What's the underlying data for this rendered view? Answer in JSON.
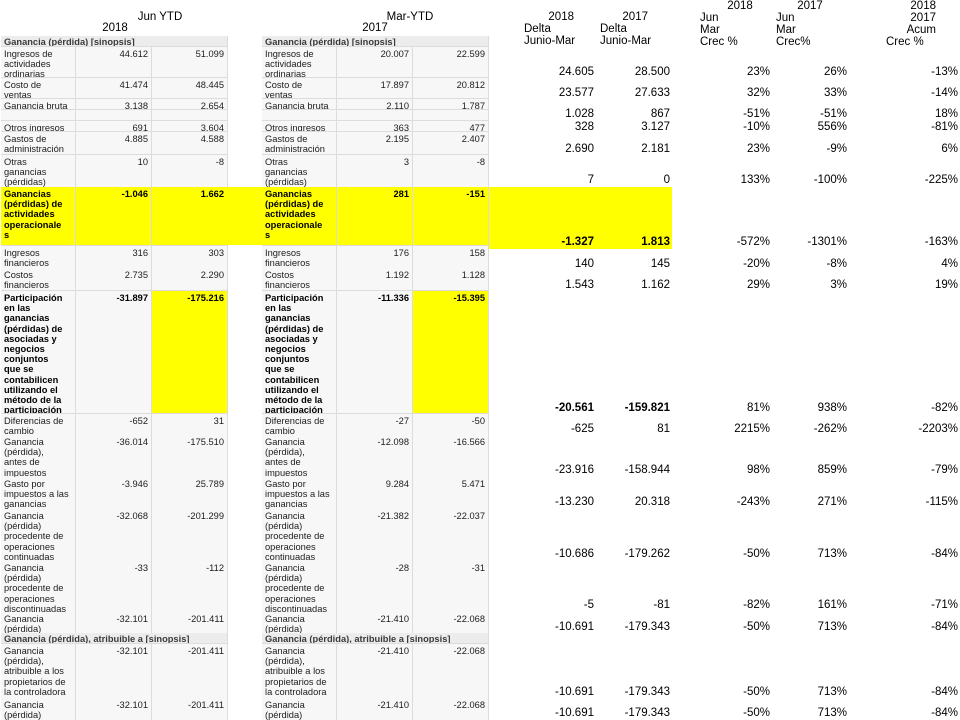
{
  "headers": {
    "jun_ytd": "Jun YTD",
    "y2018": "2018",
    "mar_ytd": "Mar-YTD",
    "y2017": "2017",
    "c_delta18_l1": "2018",
    "c_delta18_l2": "Delta",
    "c_delta18_l3": "Junio-Mar",
    "c_delta17_l1": "2017",
    "c_delta17_l2": "Delta",
    "c_delta17_l3": "Junio-Mar",
    "c_jun_l1": "2018",
    "c_jun_l2": "Jun",
    "c_jun_l3": "Mar",
    "c_jun_l4": "Crec %",
    "c_mar_l1": "2017",
    "c_mar_l2": "Jun",
    "c_mar_l3": "Mar",
    "c_mar_l4": "Crec%",
    "c_acum_l1": "2018",
    "c_acum_l2": "2017",
    "c_acum_l3": "Acum",
    "c_acum_l4": "Crec %"
  },
  "left": [
    {
      "label": "Ganancia (pérdida) [sinopsis]",
      "a": "",
      "b": ""
    },
    {
      "label": "Ingresos de\nactividades\nordinarias",
      "a": "44.612",
      "b": "51.099"
    },
    {
      "label": "Costo de\nventas",
      "a": "41.474",
      "b": "48.445"
    },
    {
      "label": "Ganancia bruta",
      "a": "3.138",
      "b": "2.654"
    },
    {
      "label": "",
      "a": "",
      "b": ""
    },
    {
      "label": "Otros ingresos",
      "a": "691",
      "b": "3.604"
    },
    {
      "label": "Gastos de\nadministración",
      "a": "4.885",
      "b": "4.588"
    },
    {
      "label": "Otras\nganancias\n(pérdidas)",
      "a": "10",
      "b": "-8"
    },
    {
      "label": "Ganancias\n(pérdidas) de\nactividades\noperacionale\ns",
      "a": "-1.046",
      "b": "1.662"
    },
    {
      "label": "Ingresos\nfinancieros",
      "a": "316",
      "b": "303"
    },
    {
      "label": "Costos\nfinancieros",
      "a": "2.735",
      "b": "2.290"
    },
    {
      "label": "Participación\nen las\nganancias\n(pérdidas) de\nasociadas y\nnegocios\nconjuntos\nque se\ncontabilicen\nutilizando el\nmétodo de la\nparticipación",
      "a": "-31.897",
      "b": "-175.216"
    },
    {
      "label": "Diferencias de\ncambio",
      "a": "-652",
      "b": "31"
    },
    {
      "label": "Ganancia\n(pérdida),\nantes de\nimpuestos",
      "a": "-36.014",
      "b": "-175.510"
    },
    {
      "label": "Gasto por\nimpuestos a las\nganancias",
      "a": "-3.946",
      "b": "25.789"
    },
    {
      "label": "Ganancia\n(pérdida)\nprocedente de\noperaciones\ncontinuadas",
      "a": "-32.068",
      "b": "-201.299"
    },
    {
      "label": "Ganancia\n(pérdida)\nprocedente de\noperaciones\ndiscontinuadas",
      "a": "-33",
      "b": "-112"
    },
    {
      "label": "Ganancia\n(pérdida)",
      "a": "-32.101",
      "b": "-201.411"
    },
    {
      "label": "Ganancia (pérdida), atribuible a [sinopsis]",
      "a": "",
      "b": ""
    },
    {
      "label": "Ganancia\n(pérdida),\natribuible a los\npropietarios de\nla controladora",
      "a": "-32.101",
      "b": "-201.411"
    },
    {
      "label": "Ganancia\n(pérdida)",
      "a": "-32.101",
      "b": "-201.411"
    }
  ],
  "mid": [
    {
      "label": "Ganancia (pérdida) [sinopsis]",
      "a": "",
      "b": ""
    },
    {
      "label": "Ingresos de\nactividades\nordinarias",
      "a": "20.007",
      "b": "22.599"
    },
    {
      "label": "Costo de\nventas",
      "a": "17.897",
      "b": "20.812"
    },
    {
      "label": "Ganancia bruta",
      "a": "2.110",
      "b": "1.787"
    },
    {
      "label": "",
      "a": "",
      "b": ""
    },
    {
      "label": "Otros ingresos",
      "a": "363",
      "b": "477"
    },
    {
      "label": "Gastos de\nadministración",
      "a": "2.195",
      "b": "2.407"
    },
    {
      "label": "Otras\nganancias\n(pérdidas)",
      "a": "3",
      "b": "-8"
    },
    {
      "label": "Ganancias\n(pérdidas) de\nactividades\noperacionale\ns",
      "a": "281",
      "b": "-151"
    },
    {
      "label": "Ingresos\nfinancieros",
      "a": "176",
      "b": "158"
    },
    {
      "label": "Costos\nfinancieros",
      "a": "1.192",
      "b": "1.128"
    },
    {
      "label": "Participación\nen las\nganancias\n(pérdidas) de\nasociadas y\nnegocios\nconjuntos\nque se\ncontabilicen\nutilizando el\nmétodo de la\nparticipación",
      "a": "-11.336",
      "b": "-15.395"
    },
    {
      "label": "Diferencias de\ncambio",
      "a": "-27",
      "b": "-50"
    },
    {
      "label": "Ganancia\n(pérdida),\nantes de\nimpuestos",
      "a": "-12.098",
      "b": "-16.566"
    },
    {
      "label": "Gasto por\nimpuestos a las\nganancias",
      "a": "9.284",
      "b": "5.471"
    },
    {
      "label": "Ganancia\n(pérdida)\nprocedente de\noperaciones\ncontinuadas",
      "a": "-21.382",
      "b": "-22.037"
    },
    {
      "label": "Ganancia\n(pérdida)\nprocedente de\noperaciones\ndiscontinuadas",
      "a": "-28",
      "b": "-31"
    },
    {
      "label": "Ganancia\n(pérdida)",
      "a": "-21.410",
      "b": "-22.068"
    },
    {
      "label": "Ganancia (pérdida), atribuible a [sinopsis]",
      "a": "",
      "b": ""
    },
    {
      "label": "Ganancia\n(pérdida),\natribuible a los\npropietarios de\nla controladora",
      "a": "-21.410",
      "b": "-22.068"
    },
    {
      "label": "Ganancia\n(pérdida)",
      "a": "-21.410",
      "b": "-22.068"
    }
  ],
  "right": [
    {
      "d18": "24.605",
      "d17": "28.500",
      "jun": "23%",
      "mar": "26%",
      "acum": "-13%"
    },
    {
      "d18": "23.577",
      "d17": "27.633",
      "jun": "32%",
      "mar": "33%",
      "acum": "-14%"
    },
    {
      "d18": "1.028",
      "d17": "867",
      "jun": "-51%",
      "mar": "-51%",
      "acum": "18%"
    },
    {
      "d18": "328",
      "d17": "3.127",
      "jun": "-10%",
      "mar": "556%",
      "acum": "-81%"
    },
    {
      "d18": "2.690",
      "d17": "2.181",
      "jun": "23%",
      "mar": "-9%",
      "acum": "6%"
    },
    {
      "d18": "7",
      "d17": "0",
      "jun": "133%",
      "mar": "-100%",
      "acum": "-225%"
    },
    {
      "d18": "-1.327",
      "d17": "1.813",
      "jun": "-572%",
      "mar": "-1301%",
      "acum": "-163%"
    },
    {
      "d18": "140",
      "d17": "145",
      "jun": "-20%",
      "mar": "-8%",
      "acum": "4%"
    },
    {
      "d18": "1.543",
      "d17": "1.162",
      "jun": "29%",
      "mar": "3%",
      "acum": "19%"
    },
    {
      "d18": "-20.561",
      "d17": "-159.821",
      "jun": "81%",
      "mar": "938%",
      "acum": "-82%"
    },
    {
      "d18": "-625",
      "d17": "81",
      "jun": "2215%",
      "mar": "-262%",
      "acum": "-2203%"
    },
    {
      "d18": "-23.916",
      "d17": "-158.944",
      "jun": "98%",
      "mar": "859%",
      "acum": "-79%"
    },
    {
      "d18": "-13.230",
      "d17": "20.318",
      "jun": "-243%",
      "mar": "271%",
      "acum": "-115%"
    },
    {
      "d18": "-10.686",
      "d17": "-179.262",
      "jun": "-50%",
      "mar": "713%",
      "acum": "-84%"
    },
    {
      "d18": "-5",
      "d17": "-81",
      "jun": "-82%",
      "mar": "161%",
      "acum": "-71%"
    },
    {
      "d18": "-10.691",
      "d17": "-179.343",
      "jun": "-50%",
      "mar": "713%",
      "acum": "-84%"
    },
    {
      "d18": "-10.691",
      "d17": "-179.343",
      "jun": "-50%",
      "mar": "713%",
      "acum": "-84%"
    },
    {
      "d18": "-10.691",
      "d17": "-179.343",
      "jun": "-50%",
      "mar": "713%",
      "acum": "-84%"
    }
  ]
}
